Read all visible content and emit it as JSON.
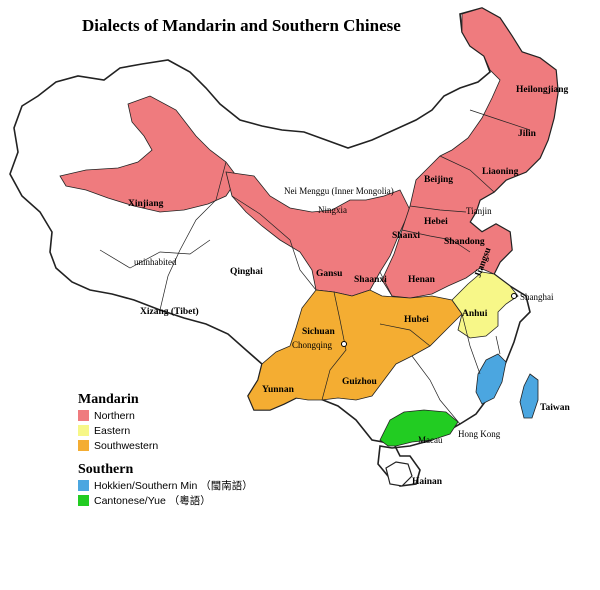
{
  "title": "Dialects of Mandarin and Southern Chinese",
  "colors": {
    "northern": "#ef7b7e",
    "eastern": "#f7f788",
    "southwestern": "#f4ad32",
    "hokkien": "#4ba6e0",
    "cantonese": "#22cc22"
  },
  "labels": {
    "heilongjiang": "Heilongjiang",
    "jilin": "Jilin",
    "liaoning": "Liaoning",
    "beijing": "Beijing",
    "tianjin": "Tianjin",
    "hebei": "Hebei",
    "shanxi": "Shanxi",
    "shandong": "Shandong",
    "henan": "Henan",
    "nei_menggu": "Nei Menggu (Inner Mongolia)",
    "ningxia": "Ningxia",
    "gansu": "Gansu",
    "shaanxi": "Shaanxi",
    "xinjiang": "Xinjiang",
    "qinghai": "Qinghai",
    "uninhabited": "uninhabited",
    "xizang": "Xizang (Tibet)",
    "sichuan": "Sichuan",
    "chongqing": "Chongqing",
    "hubei": "Hubei",
    "anhui": "Anhui",
    "jiangsu": "Jiangsu",
    "shanghai": "Shanghai",
    "guizhou": "Guizhou",
    "yunnan": "Yunnan",
    "taiwan": "Taiwan",
    "hong_kong": "Hong Kong",
    "macau": "Macau",
    "hainan": "Hainan"
  },
  "legend": {
    "mandarin_heading": "Mandarin",
    "northern": "Northern",
    "eastern": "Eastern",
    "southwestern": "Southwestern",
    "southern_heading": "Southern",
    "hokkien": "Hokkien/Southern Min （閩南語）",
    "cantonese": "Cantonese/Yue （粵語）"
  }
}
